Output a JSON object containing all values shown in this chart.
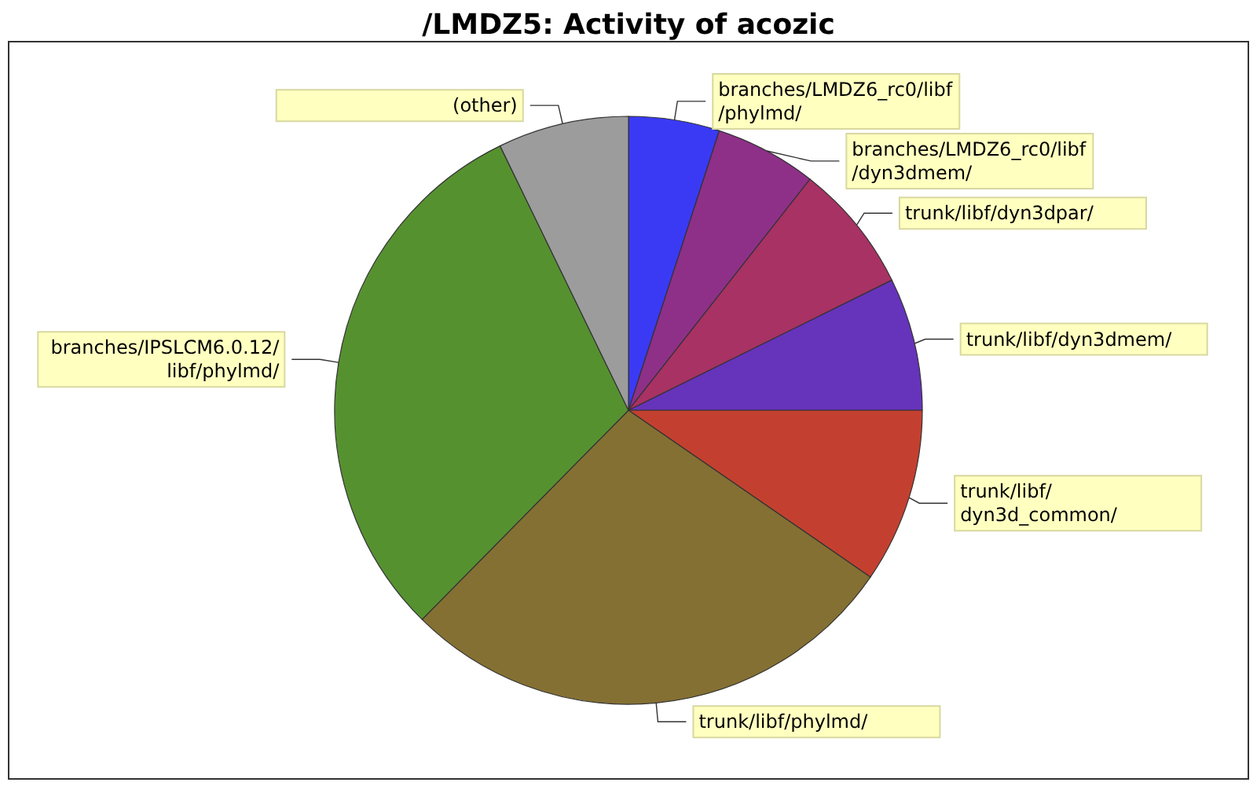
{
  "chart_data": {
    "type": "pie",
    "title": "/LMDZ5: Activity of acozic",
    "categories": [
      "branches/LMDZ6_rc0/libf/phylmd/",
      "branches/LMDZ6_rc0/libf/dyn3dmem/",
      "trunk/libf/dyn3dpar/",
      "trunk/libf/dyn3dmem/",
      "trunk/libf/dyn3d_common/",
      "trunk/libf/phylmd/",
      "branches/IPSLCM6.0.12/libf/phylmd/",
      "(other)"
    ],
    "values": [
      5.0,
      5.6,
      7.1,
      7.3,
      9.6,
      27.8,
      30.4,
      7.2
    ],
    "colors": [
      "#3a3af5",
      "#8e3088",
      "#a83264",
      "#6633bb",
      "#c34030",
      "#857033",
      "#569130",
      "#9c9c9c"
    ]
  }
}
